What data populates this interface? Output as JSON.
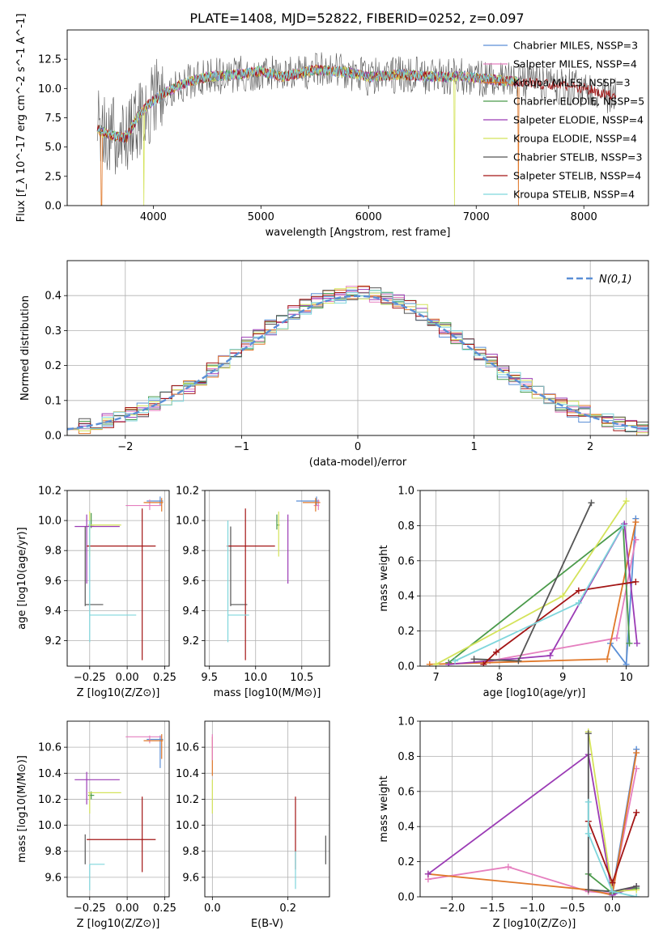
{
  "title": "PLATE=1408, MJD=52822, FIBERID=0252, z=0.097",
  "colors": {
    "c1": "#5b8fd6",
    "c2": "#e57fbf",
    "c3": "#e0782a",
    "c4": "#4a9a4a",
    "c5": "#9b3bb5",
    "c6": "#d4e35a",
    "c7": "#555555",
    "c8": "#a31515",
    "c9": "#7fd6dc"
  },
  "chart_data": [
    {
      "type": "line",
      "xlabel": "wavelength [Angstrom, rest frame]",
      "ylabel": "Flux [f_λ 10^-17 erg cm^-2 s^-1 A^-1]",
      "xlim": [
        3200,
        8600
      ],
      "ylim": [
        0,
        15
      ],
      "xticks": [
        "4000",
        "5000",
        "6000",
        "7000",
        "8000"
      ],
      "yticks": [
        "0.0",
        "2.5",
        "5.0",
        "7.5",
        "10.0",
        "12.5"
      ],
      "legend_position": "right",
      "series": [
        {
          "name": "Chabrier MILES, NSSP=3",
          "color": "#5b8fd6"
        },
        {
          "name": "Salpeter MILES, NSSP=4",
          "color": "#e57fbf"
        },
        {
          "name": "Kroupa MILES, NSSP=3",
          "color": "#e0782a"
        },
        {
          "name": "Chabrier ELODIE, NSSP=5",
          "color": "#4a9a4a"
        },
        {
          "name": "Salpeter ELODIE, NSSP=4",
          "color": "#9b3bb5"
        },
        {
          "name": "Kroupa ELODIE, NSSP=4",
          "color": "#d4e35a"
        },
        {
          "name": "Chabrier STELIB, NSSP=3",
          "color": "#555555"
        },
        {
          "name": "Salpeter STELIB, NSSP=4",
          "color": "#a31515"
        },
        {
          "name": "Kroupa STELIB, NSSP=4",
          "color": "#7fd6dc"
        }
      ],
      "spectrum_knots": [
        [
          3480,
          6.5
        ],
        [
          3600,
          6.0
        ],
        [
          3750,
          5.8
        ],
        [
          3850,
          7.5
        ],
        [
          3950,
          8.6
        ],
        [
          4100,
          9.6
        ],
        [
          4300,
          10.5
        ],
        [
          4500,
          11.0
        ],
        [
          4800,
          11.2
        ],
        [
          5000,
          11.5
        ],
        [
          5200,
          11.0
        ],
        [
          5500,
          11.6
        ],
        [
          5800,
          11.4
        ],
        [
          6000,
          11.0
        ],
        [
          6300,
          11.2
        ],
        [
          6600,
          11.0
        ],
        [
          6900,
          11.0
        ],
        [
          7200,
          10.7
        ],
        [
          7500,
          10.5
        ],
        [
          7800,
          10.2
        ],
        [
          8000,
          10.0
        ],
        [
          8200,
          9.5
        ],
        [
          8300,
          9.3
        ]
      ]
    },
    {
      "type": "step-histogram",
      "xlabel": "(data-model)/error",
      "ylabel": "Normed distribution",
      "xlim": [
        -2.5,
        2.5
      ],
      "ylim": [
        0,
        0.5
      ],
      "xticks": [
        "−2",
        "−1",
        "0",
        "1",
        "2"
      ],
      "yticks": [
        "0.0",
        "0.1",
        "0.2",
        "0.3",
        "0.4"
      ],
      "grid": true,
      "legend_position": "top-right",
      "reference_curve": {
        "name": "N(0,1)",
        "color": "#5b8fd6",
        "style": "dashed"
      }
    },
    {
      "type": "errorbar",
      "xlabel": "Z [log10(Z/Z⊙)]",
      "ylabel": "age [log10(age/yr)]",
      "xlim": [
        -0.4,
        0.28
      ],
      "ylim": [
        9.03,
        10.2
      ],
      "xticks": [
        "−0.25",
        "0.00",
        "0.25"
      ],
      "yticks": [
        "9.2",
        "9.4",
        "9.6",
        "9.8",
        "10.0",
        "10.2"
      ],
      "grid": true,
      "points": [
        {
          "x": 0.22,
          "y": 10.13,
          "xerr": [
            0.09,
            0.02
          ],
          "yerr": [
            0.03,
            0.03
          ],
          "color": "#5b8fd6"
        },
        {
          "x": 0.15,
          "y": 10.1,
          "xerr": [
            0.16,
            0.08
          ],
          "yerr": [
            0.03,
            0.04
          ],
          "color": "#e57fbf"
        },
        {
          "x": 0.23,
          "y": 10.12,
          "xerr": [
            0.12,
            0.01
          ],
          "yerr": [
            0.06,
            0.03
          ],
          "color": "#e0782a"
        },
        {
          "x": -0.24,
          "y": 9.97,
          "xerr": [
            0.02,
            0.02
          ],
          "yerr": [
            0.02,
            0.08
          ],
          "color": "#4a9a4a"
        },
        {
          "x": -0.27,
          "y": 9.96,
          "xerr": [
            0.08,
            0.22
          ],
          "yerr": [
            0.38,
            0.08
          ],
          "color": "#9b3bb5"
        },
        {
          "x": -0.25,
          "y": 9.97,
          "xerr": [
            0.01,
            0.21
          ],
          "yerr": [
            0.21,
            0.09
          ],
          "color": "#d4e35a"
        },
        {
          "x": -0.28,
          "y": 9.44,
          "xerr": [
            0.0,
            0.12
          ],
          "yerr": [
            0.01,
            0.52
          ],
          "color": "#555555"
        },
        {
          "x": 0.1,
          "y": 9.83,
          "xerr": [
            0.37,
            0.09
          ],
          "yerr": [
            0.76,
            0.25
          ],
          "color": "#a31515"
        },
        {
          "x": -0.25,
          "y": 9.37,
          "xerr": [
            0.0,
            0.31
          ],
          "yerr": [
            0.18,
            0.63
          ],
          "color": "#7fd6dc"
        }
      ]
    },
    {
      "type": "errorbar",
      "xlabel": "mass [log10(M/M⊙)]",
      "ylabel": "",
      "xlim": [
        9.45,
        10.8
      ],
      "ylim": [
        9.03,
        10.2
      ],
      "xticks": [
        "9.5",
        "10.0",
        "10.5"
      ],
      "yticks": [
        "9.2",
        "9.4",
        "9.6",
        "9.8",
        "10.0",
        "10.2"
      ],
      "grid": true,
      "points": [
        {
          "x": 10.66,
          "y": 10.13,
          "xerr": [
            0.22,
            0.03
          ],
          "yerr": [
            0.03,
            0.03
          ],
          "color": "#5b8fd6"
        },
        {
          "x": 10.68,
          "y": 10.1,
          "xerr": [
            0.05,
            0.01
          ],
          "yerr": [
            0.03,
            0.04
          ],
          "color": "#e57fbf"
        },
        {
          "x": 10.65,
          "y": 10.12,
          "xerr": [
            0.14,
            0.05
          ],
          "yerr": [
            0.06,
            0.03
          ],
          "color": "#e0782a"
        },
        {
          "x": 10.23,
          "y": 9.97,
          "xerr": [
            0.0,
            0.03
          ],
          "yerr": [
            0.03,
            0.07
          ],
          "color": "#4a9a4a"
        },
        {
          "x": 10.35,
          "y": 9.96,
          "xerr": [
            0.0,
            0.0
          ],
          "yerr": [
            0.38,
            0.08
          ],
          "color": "#9b3bb5"
        },
        {
          "x": 10.25,
          "y": 9.97,
          "xerr": [
            0.0,
            0.0
          ],
          "yerr": [
            0.21,
            0.09
          ],
          "color": "#d4e35a"
        },
        {
          "x": 9.73,
          "y": 9.44,
          "xerr": [
            0.0,
            0.18
          ],
          "yerr": [
            0.01,
            0.52
          ],
          "color": "#555555"
        },
        {
          "x": 9.89,
          "y": 9.83,
          "xerr": [
            0.2,
            0.32
          ],
          "yerr": [
            0.76,
            0.25
          ],
          "color": "#a31515"
        },
        {
          "x": 9.7,
          "y": 9.37,
          "xerr": [
            0.0,
            0.23
          ],
          "yerr": [
            0.18,
            0.63
          ],
          "color": "#7fd6dc"
        }
      ]
    },
    {
      "type": "line",
      "xlabel": "age [log10(age/yr)]",
      "ylabel": "mass weight",
      "xlim": [
        6.75,
        10.35
      ],
      "ylim": [
        0,
        1
      ],
      "xticks": [
        "7",
        "8",
        "9",
        "10"
      ],
      "yticks": [
        "0.0",
        "0.2",
        "0.4",
        "0.6",
        "0.8",
        "1.0"
      ],
      "grid": true,
      "series": [
        {
          "color": "#5b8fd6",
          "points": [
            [
              9.75,
              0.13
            ],
            [
              10.0,
              0.01
            ],
            [
              10.15,
              0.84
            ]
          ]
        },
        {
          "color": "#e57fbf",
          "points": [
            [
              7.85,
              0.03
            ],
            [
              9.85,
              0.16
            ],
            [
              10.15,
              0.72
            ]
          ]
        },
        {
          "color": "#e0782a",
          "points": [
            [
              6.9,
              0.01
            ],
            [
              9.7,
              0.04
            ],
            [
              10.15,
              0.82
            ]
          ]
        },
        {
          "color": "#4a9a4a",
          "points": [
            [
              7.2,
              0.02
            ],
            [
              9.95,
              0.8
            ],
            [
              10.05,
              0.13
            ]
          ]
        },
        {
          "color": "#9b3bb5",
          "points": [
            [
              7.2,
              0.01
            ],
            [
              8.8,
              0.06
            ],
            [
              9.97,
              0.81
            ],
            [
              10.17,
              0.13
            ]
          ]
        },
        {
          "color": "#d4e35a",
          "points": [
            [
              7.0,
              0.01
            ],
            [
              9.0,
              0.4
            ],
            [
              10.0,
              0.94
            ]
          ]
        },
        {
          "color": "#555555",
          "points": [
            [
              7.6,
              0.04
            ],
            [
              8.3,
              0.03
            ],
            [
              9.45,
              0.93
            ]
          ]
        },
        {
          "color": "#a31515",
          "points": [
            [
              7.75,
              0.01
            ],
            [
              7.95,
              0.08
            ],
            [
              9.25,
              0.43
            ],
            [
              10.15,
              0.48
            ]
          ]
        },
        {
          "color": "#7fd6dc",
          "points": [
            [
              7.3,
              0.03
            ],
            [
              9.25,
              0.36
            ],
            [
              9.95,
              0.8
            ]
          ]
        }
      ]
    },
    {
      "type": "errorbar",
      "xlabel": "Z [log10(Z/Z⊙)]",
      "ylabel": "mass [log10(M/M⊙)]",
      "xlim": [
        -0.4,
        0.28
      ],
      "ylim": [
        9.45,
        10.8
      ],
      "xticks": [
        "−0.25",
        "0.00",
        "0.25"
      ],
      "yticks": [
        "9.6",
        "9.8",
        "10.0",
        "10.2",
        "10.4",
        "10.6"
      ],
      "grid": true,
      "points": [
        {
          "x": 0.22,
          "y": 10.66,
          "xerr": [
            0.09,
            0.02
          ],
          "yerr": [
            0.22,
            0.03
          ],
          "color": "#5b8fd6"
        },
        {
          "x": 0.15,
          "y": 10.68,
          "xerr": [
            0.16,
            0.08
          ],
          "yerr": [
            0.05,
            0.01
          ],
          "color": "#e57fbf"
        },
        {
          "x": 0.23,
          "y": 10.65,
          "xerr": [
            0.12,
            0.01
          ],
          "yerr": [
            0.14,
            0.05
          ],
          "color": "#e0782a"
        },
        {
          "x": -0.24,
          "y": 10.23,
          "xerr": [
            0.02,
            0.02
          ],
          "yerr": [
            0.03,
            0.03
          ],
          "color": "#4a9a4a"
        },
        {
          "x": -0.27,
          "y": 10.35,
          "xerr": [
            0.08,
            0.22
          ],
          "yerr": [
            0.19,
            0.06
          ],
          "color": "#9b3bb5"
        },
        {
          "x": -0.25,
          "y": 10.25,
          "xerr": [
            0.01,
            0.21
          ],
          "yerr": [
            0.16,
            0.0
          ],
          "color": "#d4e35a"
        },
        {
          "x": -0.28,
          "y": 9.73,
          "xerr": [
            0.0,
            0.0
          ],
          "yerr": [
            0.03,
            0.2
          ],
          "color": "#555555"
        },
        {
          "x": 0.1,
          "y": 9.89,
          "xerr": [
            0.37,
            0.09
          ],
          "yerr": [
            0.25,
            0.33
          ],
          "color": "#a31515"
        },
        {
          "x": -0.25,
          "y": 9.7,
          "xerr": [
            0.0,
            0.1
          ],
          "yerr": [
            0.2,
            0.0
          ],
          "color": "#7fd6dc"
        }
      ]
    },
    {
      "type": "errorbar",
      "xlabel": "E(B-V)",
      "ylabel": "",
      "xlim": [
        -0.02,
        0.31
      ],
      "ylim": [
        9.45,
        10.8
      ],
      "xticks": [
        "0.0",
        "0.2"
      ],
      "yticks": [
        "9.6",
        "9.8",
        "10.0",
        "10.2",
        "10.4",
        "10.6"
      ],
      "grid": true,
      "points": [
        {
          "x": 0.0,
          "y": 10.48,
          "xerr": [
            0,
            0
          ],
          "yerr": [
            0.1,
            0.2
          ],
          "color": "#e0782a"
        },
        {
          "x": 0.0,
          "y": 10.6,
          "xerr": [
            0,
            0
          ],
          "yerr": [
            0.1,
            0.1
          ],
          "color": "#e57fbf"
        },
        {
          "x": 0.0,
          "y": 10.25,
          "xerr": [
            0,
            0
          ],
          "yerr": [
            0.16,
            0.1
          ],
          "color": "#d4e35a"
        },
        {
          "x": 0.22,
          "y": 9.94,
          "xerr": [
            0,
            0
          ],
          "yerr": [
            0.28,
            0.28
          ],
          "color": "#a31515"
        },
        {
          "x": 0.22,
          "y": 9.7,
          "xerr": [
            0,
            0
          ],
          "yerr": [
            0.19,
            0.1
          ],
          "color": "#7fd6dc"
        },
        {
          "x": 0.3,
          "y": 9.82,
          "xerr": [
            0,
            0
          ],
          "yerr": [
            0.12,
            0.1
          ],
          "color": "#555555"
        }
      ]
    },
    {
      "type": "line",
      "xlabel": "Z [log10(Z/Z⊙)]",
      "ylabel": "mass weight",
      "xlim": [
        -2.4,
        0.45
      ],
      "ylim": [
        0,
        1
      ],
      "xticks": [
        "−2.0",
        "−1.5",
        "−1.0",
        "−0.5",
        "0.0"
      ],
      "yticks": [
        "0.0",
        "0.2",
        "0.4",
        "0.6",
        "0.8",
        "1.0"
      ],
      "grid": true,
      "series": [
        {
          "color": "#5b8fd6",
          "points": [
            [
              -0.3,
              0.04
            ],
            [
              0.0,
              0.03
            ],
            [
              0.3,
              0.84
            ]
          ]
        },
        {
          "color": "#e57fbf",
          "points": [
            [
              -2.3,
              0.1
            ],
            [
              -1.3,
              0.17
            ],
            [
              -0.3,
              0.03
            ],
            [
              0.0,
              0.02
            ],
            [
              0.3,
              0.73
            ]
          ]
        },
        {
          "color": "#e0782a",
          "points": [
            [
              -2.3,
              0.13
            ],
            [
              -0.3,
              0.04
            ],
            [
              0.0,
              0.01
            ],
            [
              0.3,
              0.82
            ]
          ]
        },
        {
          "color": "#4a9a4a",
          "points": [
            [
              -0.3,
              0.13
            ],
            [
              0.0,
              0.02
            ],
            [
              0.3,
              0.05
            ]
          ]
        },
        {
          "color": "#9b3bb5",
          "points": [
            [
              -2.3,
              0.13
            ],
            [
              -0.3,
              0.81
            ],
            [
              0.0,
              0.01
            ],
            [
              0.3,
              0.06
            ]
          ]
        },
        {
          "color": "#d4e35a",
          "points": [
            [
              -0.3,
              0.94
            ],
            [
              0.0,
              0.03
            ],
            [
              0.3,
              0.04
            ]
          ]
        },
        {
          "color": "#555555",
          "points": [
            [
              -0.3,
              0.93
            ],
            [
              -0.3,
              0.04
            ],
            [
              0.0,
              0.03
            ],
            [
              0.3,
              0.06
            ]
          ]
        },
        {
          "color": "#a31515",
          "points": [
            [
              -0.3,
              0.43
            ],
            [
              0.0,
              0.08
            ],
            [
              0.3,
              0.48
            ]
          ]
        },
        {
          "color": "#7fd6dc",
          "points": [
            [
              -0.3,
              0.54
            ],
            [
              -0.3,
              0.36
            ],
            [
              0.0,
              0.03
            ],
            [
              0.3,
              0.0
            ]
          ]
        }
      ]
    }
  ]
}
